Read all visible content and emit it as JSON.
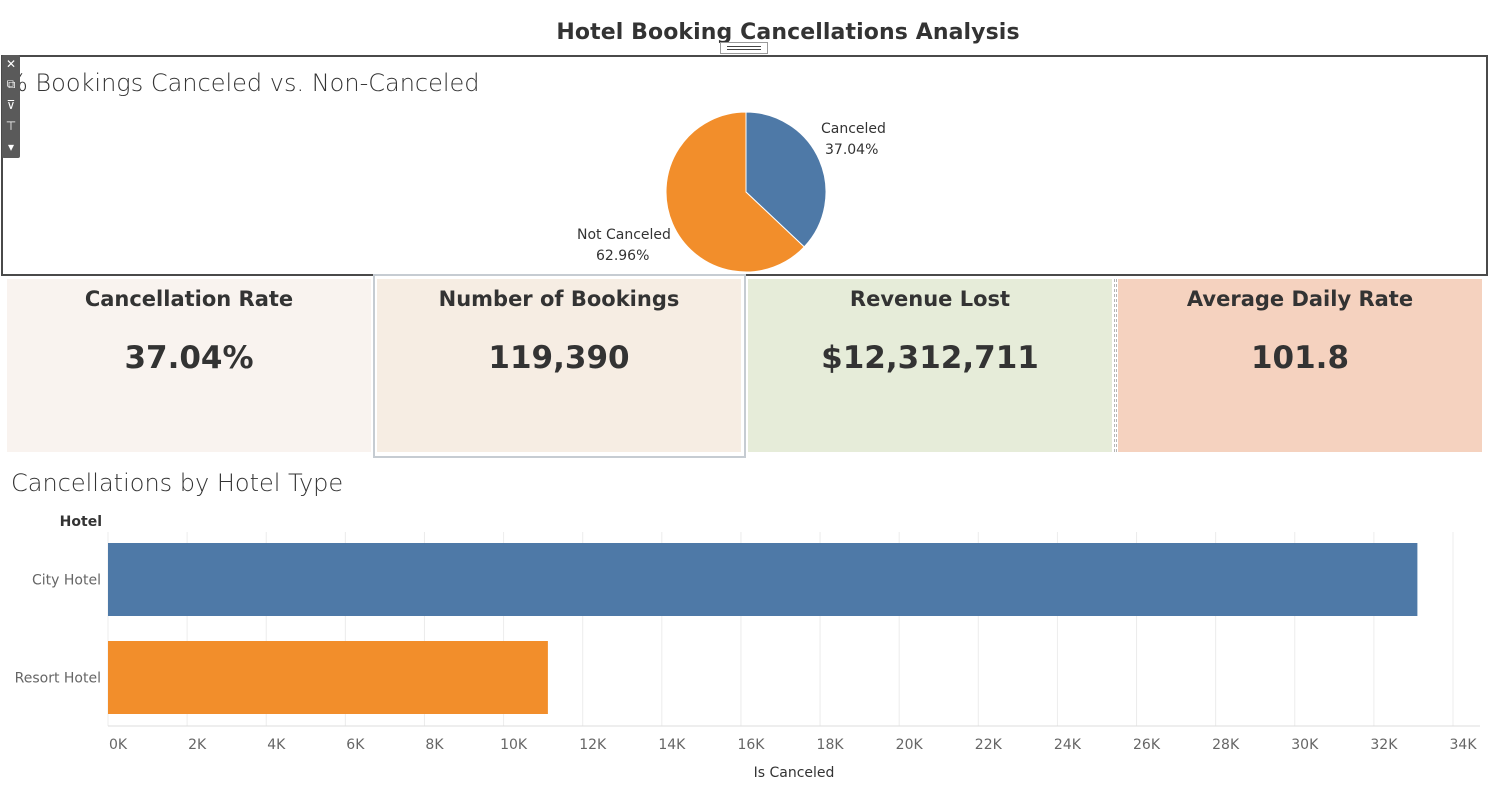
{
  "dashboard": {
    "title": "Hotel Booking Cancellations Analysis"
  },
  "toolbar": {
    "items": [
      {
        "name": "close-icon",
        "glyph": "✕"
      },
      {
        "name": "open-external-icon",
        "glyph": "⧉"
      },
      {
        "name": "filter-icon",
        "glyph": "⊽"
      },
      {
        "name": "pin-icon",
        "glyph": "⊤"
      },
      {
        "name": "more-options-icon",
        "glyph": "▾"
      }
    ]
  },
  "pie": {
    "title": "% Bookings Canceled vs. Non-Canceled",
    "labels": {
      "canceled_name": "Canceled",
      "canceled_value": "37.04%",
      "not_canceled_name": "Not Canceled",
      "not_canceled_value": "62.96%"
    }
  },
  "kpis": [
    {
      "label": "Cancellation Rate",
      "value": "37.04%",
      "color": "#f9f3ef"
    },
    {
      "label": "Number of Bookings",
      "value": "119,390",
      "color": "#f6ede3"
    },
    {
      "label": "Revenue Lost",
      "value": "$12,312,711",
      "color": "#e6ecd9"
    },
    {
      "label": "Average Daily Rate",
      "value": "101.8",
      "color": "#f5d2bf"
    }
  ],
  "bar": {
    "title": "Cancellations by Hotel Type",
    "row_header": "Hotel",
    "x_axis_label": "Is Canceled"
  },
  "chart_data": [
    {
      "type": "pie",
      "title": "% Bookings Canceled vs. Non-Canceled",
      "slices": [
        {
          "label": "Canceled",
          "percent": 37.04,
          "color": "#4e79a7"
        },
        {
          "label": "Not Canceled",
          "percent": 62.96,
          "color": "#f28e2b"
        }
      ]
    },
    {
      "type": "bar",
      "orientation": "horizontal",
      "title": "Cancellations by Hotel Type",
      "ylabel": "Hotel",
      "xlabel": "Is Canceled",
      "categories": [
        "City Hotel",
        "Resort Hotel"
      ],
      "values": [
        33100,
        11120
      ],
      "colors": [
        "#4e79a7",
        "#f28e2b"
      ],
      "xlim": [
        0,
        34000
      ],
      "ticks": [
        "0K",
        "2K",
        "4K",
        "6K",
        "8K",
        "10K",
        "12K",
        "14K",
        "16K",
        "18K",
        "20K",
        "22K",
        "24K",
        "26K",
        "28K",
        "30K",
        "32K",
        "34K"
      ],
      "tick_values": [
        0,
        2000,
        4000,
        6000,
        8000,
        10000,
        12000,
        14000,
        16000,
        18000,
        20000,
        22000,
        24000,
        26000,
        28000,
        30000,
        32000,
        34000
      ],
      "grid": true
    }
  ]
}
